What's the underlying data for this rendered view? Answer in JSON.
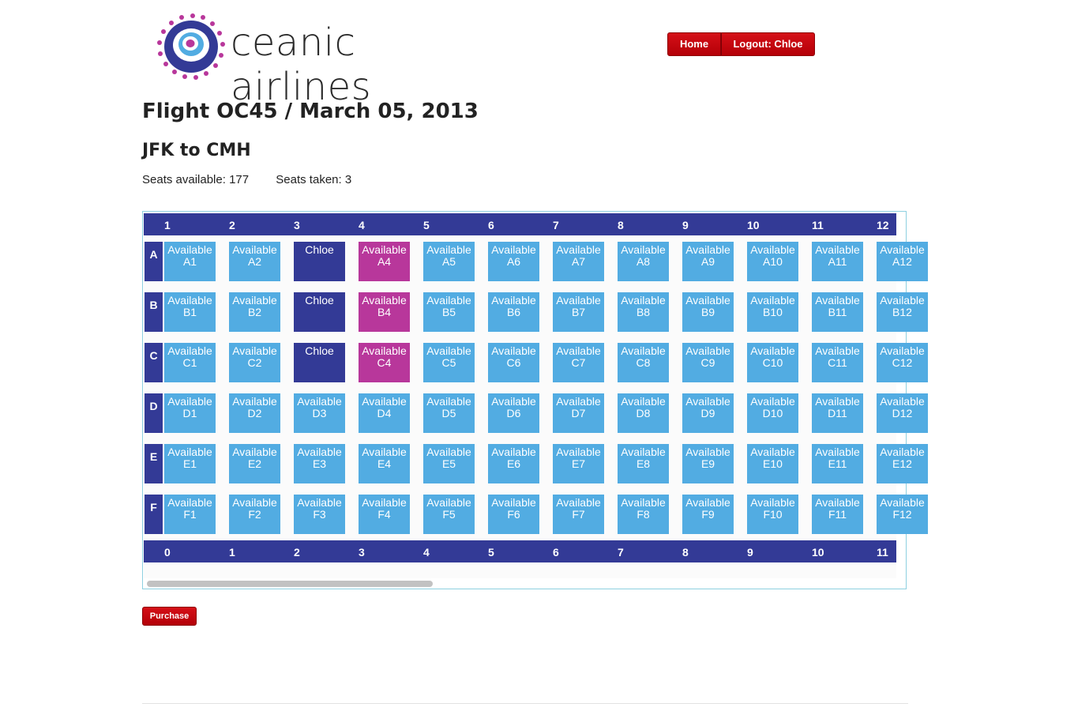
{
  "brand": {
    "name": "ceanic airlines"
  },
  "nav": {
    "home_label": "Home",
    "logout_label": "Logout: Chloe"
  },
  "flight": {
    "title": "Flight OC45 / March 05, 2013",
    "route": "JFK to CMH",
    "seats_available_text": "Seats available: 177",
    "seats_taken_text": "Seats taken: 3"
  },
  "seat_map": {
    "top_columns": [
      "1",
      "2",
      "3",
      "4",
      "5",
      "6",
      "7",
      "8",
      "9",
      "10",
      "11",
      "12"
    ],
    "bottom_columns": [
      "0",
      "1",
      "2",
      "3",
      "4",
      "5",
      "6",
      "7",
      "8",
      "9",
      "10",
      "11"
    ],
    "rows": [
      "A",
      "B",
      "C",
      "D",
      "E",
      "F"
    ],
    "available_text": "Available",
    "colors": {
      "available": "#52ace2",
      "taken": "#333a96",
      "selected": "#b8379b",
      "header": "#333a96"
    },
    "seats": {
      "A": [
        {
          "status": "available",
          "lines": [
            "Available",
            "A1"
          ]
        },
        {
          "status": "available",
          "lines": [
            "Available",
            "A2"
          ]
        },
        {
          "status": "taken",
          "lines": [
            "Chloe",
            ""
          ]
        },
        {
          "status": "selected",
          "lines": [
            "Available",
            "A4"
          ]
        },
        {
          "status": "available",
          "lines": [
            "Available",
            "A5"
          ]
        },
        {
          "status": "available",
          "lines": [
            "Available",
            "A6"
          ]
        },
        {
          "status": "available",
          "lines": [
            "Available",
            "A7"
          ]
        },
        {
          "status": "available",
          "lines": [
            "Available",
            "A8"
          ]
        },
        {
          "status": "available",
          "lines": [
            "Available",
            "A9"
          ]
        },
        {
          "status": "available",
          "lines": [
            "Available",
            "A10"
          ]
        },
        {
          "status": "available",
          "lines": [
            "Available",
            "A11"
          ]
        },
        {
          "status": "available",
          "lines": [
            "Available",
            "A12"
          ]
        }
      ],
      "B": [
        {
          "status": "available",
          "lines": [
            "Available",
            "B1"
          ]
        },
        {
          "status": "available",
          "lines": [
            "Available",
            "B2"
          ]
        },
        {
          "status": "taken",
          "lines": [
            "Chloe",
            ""
          ]
        },
        {
          "status": "selected",
          "lines": [
            "Available",
            "B4"
          ]
        },
        {
          "status": "available",
          "lines": [
            "Available",
            "B5"
          ]
        },
        {
          "status": "available",
          "lines": [
            "Available",
            "B6"
          ]
        },
        {
          "status": "available",
          "lines": [
            "Available",
            "B7"
          ]
        },
        {
          "status": "available",
          "lines": [
            "Available",
            "B8"
          ]
        },
        {
          "status": "available",
          "lines": [
            "Available",
            "B9"
          ]
        },
        {
          "status": "available",
          "lines": [
            "Available",
            "B10"
          ]
        },
        {
          "status": "available",
          "lines": [
            "Available",
            "B11"
          ]
        },
        {
          "status": "available",
          "lines": [
            "Available",
            "B12"
          ]
        }
      ],
      "C": [
        {
          "status": "available",
          "lines": [
            "Available",
            "C1"
          ]
        },
        {
          "status": "available",
          "lines": [
            "Available",
            "C2"
          ]
        },
        {
          "status": "taken",
          "lines": [
            "Chloe",
            ""
          ]
        },
        {
          "status": "selected",
          "lines": [
            "Available",
            "C4"
          ]
        },
        {
          "status": "available",
          "lines": [
            "Available",
            "C5"
          ]
        },
        {
          "status": "available",
          "lines": [
            "Available",
            "C6"
          ]
        },
        {
          "status": "available",
          "lines": [
            "Available",
            "C7"
          ]
        },
        {
          "status": "available",
          "lines": [
            "Available",
            "C8"
          ]
        },
        {
          "status": "available",
          "lines": [
            "Available",
            "C9"
          ]
        },
        {
          "status": "available",
          "lines": [
            "Available",
            "C10"
          ]
        },
        {
          "status": "available",
          "lines": [
            "Available",
            "C11"
          ]
        },
        {
          "status": "available",
          "lines": [
            "Available",
            "C12"
          ]
        }
      ],
      "D": [
        {
          "status": "available",
          "lines": [
            "Available",
            "D1"
          ]
        },
        {
          "status": "available",
          "lines": [
            "Available",
            "D2"
          ]
        },
        {
          "status": "available",
          "lines": [
            "Available",
            "D3"
          ]
        },
        {
          "status": "available",
          "lines": [
            "Available",
            "D4"
          ]
        },
        {
          "status": "available",
          "lines": [
            "Available",
            "D5"
          ]
        },
        {
          "status": "available",
          "lines": [
            "Available",
            "D6"
          ]
        },
        {
          "status": "available",
          "lines": [
            "Available",
            "D7"
          ]
        },
        {
          "status": "available",
          "lines": [
            "Available",
            "D8"
          ]
        },
        {
          "status": "available",
          "lines": [
            "Available",
            "D9"
          ]
        },
        {
          "status": "available",
          "lines": [
            "Available",
            "D10"
          ]
        },
        {
          "status": "available",
          "lines": [
            "Available",
            "D11"
          ]
        },
        {
          "status": "available",
          "lines": [
            "Available",
            "D12"
          ]
        }
      ],
      "E": [
        {
          "status": "available",
          "lines": [
            "Available",
            "E1"
          ]
        },
        {
          "status": "available",
          "lines": [
            "Available",
            "E2"
          ]
        },
        {
          "status": "available",
          "lines": [
            "Available",
            "E3"
          ]
        },
        {
          "status": "available",
          "lines": [
            "Available",
            "E4"
          ]
        },
        {
          "status": "available",
          "lines": [
            "Available",
            "E5"
          ]
        },
        {
          "status": "available",
          "lines": [
            "Available",
            "E6"
          ]
        },
        {
          "status": "available",
          "lines": [
            "Available",
            "E7"
          ]
        },
        {
          "status": "available",
          "lines": [
            "Available",
            "E8"
          ]
        },
        {
          "status": "available",
          "lines": [
            "Available",
            "E9"
          ]
        },
        {
          "status": "available",
          "lines": [
            "Available",
            "E10"
          ]
        },
        {
          "status": "available",
          "lines": [
            "Available",
            "E11"
          ]
        },
        {
          "status": "available",
          "lines": [
            "Available",
            "E12"
          ]
        }
      ],
      "F": [
        {
          "status": "available",
          "lines": [
            "Available",
            "F1"
          ]
        },
        {
          "status": "available",
          "lines": [
            "Available",
            "F2"
          ]
        },
        {
          "status": "available",
          "lines": [
            "Available",
            "F3"
          ]
        },
        {
          "status": "available",
          "lines": [
            "Available",
            "F4"
          ]
        },
        {
          "status": "available",
          "lines": [
            "Available",
            "F5"
          ]
        },
        {
          "status": "available",
          "lines": [
            "Available",
            "F6"
          ]
        },
        {
          "status": "available",
          "lines": [
            "Available",
            "F7"
          ]
        },
        {
          "status": "available",
          "lines": [
            "Available",
            "F8"
          ]
        },
        {
          "status": "available",
          "lines": [
            "Available",
            "F9"
          ]
        },
        {
          "status": "available",
          "lines": [
            "Available",
            "F10"
          ]
        },
        {
          "status": "available",
          "lines": [
            "Available",
            "F11"
          ]
        },
        {
          "status": "available",
          "lines": [
            "Available",
            "F12"
          ]
        }
      ]
    }
  },
  "actions": {
    "purchase_label": "Purchase"
  }
}
